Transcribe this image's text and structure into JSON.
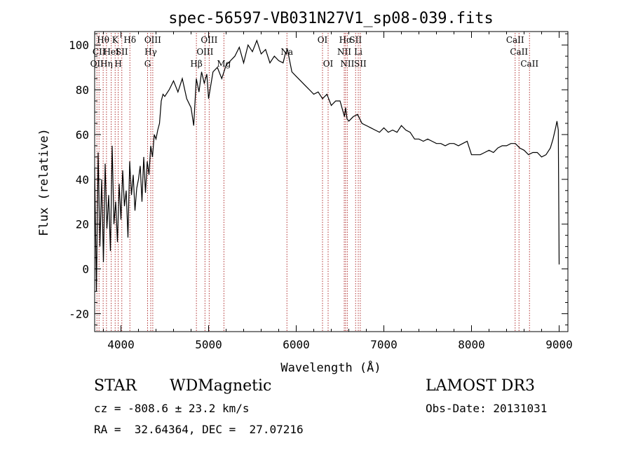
{
  "chart_data": {
    "type": "line",
    "title": "spec-56597-VB031N27V1_sp08-039.fits",
    "xlabel": "Wavelength (Å)",
    "ylabel": "Flux (relative)",
    "xlim": [
      3700,
      9100
    ],
    "ylim": [
      -28,
      106
    ],
    "xticks": [
      4000,
      5000,
      6000,
      7000,
      8000,
      9000
    ],
    "yticks": [
      -20,
      0,
      20,
      40,
      60,
      80,
      100
    ],
    "grid": false,
    "line_color": "#000000",
    "marker_color": "#b03030",
    "series": [
      {
        "x": [
          3700,
          3720,
          3740,
          3760,
          3780,
          3800,
          3820,
          3840,
          3860,
          3880,
          3900,
          3920,
          3940,
          3960,
          3980,
          4000,
          4020,
          4040,
          4060,
          4080,
          4100,
          4120,
          4140,
          4160,
          4180,
          4200,
          4220,
          4240,
          4260,
          4280,
          4300,
          4320,
          4340,
          4360,
          4380,
          4400,
          4420,
          4440,
          4460,
          4480,
          4500,
          4550,
          4600,
          4650,
          4700,
          4750,
          4800,
          4830,
          4860,
          4890,
          4920,
          4950,
          4980,
          5000,
          5050,
          5100,
          5150,
          5200,
          5250,
          5300,
          5350,
          5400,
          5450,
          5500,
          5550,
          5600,
          5650,
          5700,
          5750,
          5800,
          5850,
          5875,
          5900,
          5950,
          6000,
          6050,
          6100,
          6150,
          6200,
          6250,
          6300,
          6350,
          6400,
          6450,
          6500,
          6550,
          6563,
          6580,
          6600,
          6650,
          6700,
          6750,
          6800,
          6850,
          6900,
          6950,
          7000,
          7050,
          7100,
          7150,
          7200,
          7250,
          7300,
          7350,
          7400,
          7450,
          7500,
          7550,
          7600,
          7650,
          7700,
          7750,
          7800,
          7850,
          7900,
          7950,
          8000,
          8050,
          8100,
          8150,
          8200,
          8250,
          8300,
          8350,
          8400,
          8450,
          8500,
          8550,
          8600,
          8650,
          8700,
          8750,
          8800,
          8850,
          8900,
          8930,
          8960,
          8975,
          8990,
          9000
        ],
        "y": [
          45,
          -10,
          52,
          10,
          40,
          3,
          47,
          18,
          33,
          8,
          55,
          20,
          30,
          12,
          38,
          22,
          44,
          28,
          35,
          14,
          48,
          33,
          42,
          26,
          36,
          40,
          46,
          30,
          50,
          34,
          48,
          42,
          55,
          50,
          60,
          58,
          62,
          65,
          75,
          78,
          77,
          80,
          84,
          79,
          85,
          76,
          72,
          64,
          85,
          79,
          88,
          83,
          87,
          76,
          88,
          90,
          85,
          91,
          93,
          95,
          99,
          92,
          100,
          97,
          102,
          96,
          98,
          92,
          95,
          93,
          92,
          96,
          98,
          88,
          86,
          84,
          82,
          80,
          78,
          79,
          76,
          78,
          73,
          75,
          75,
          68,
          72,
          67,
          66,
          68,
          69,
          65,
          64,
          63,
          62,
          61,
          63,
          61,
          62,
          61,
          64,
          62,
          61,
          58,
          58,
          57,
          58,
          57,
          56,
          56,
          55,
          56,
          56,
          55,
          56,
          57,
          51,
          51,
          51,
          52,
          53,
          52,
          54,
          55,
          55,
          56,
          56,
          54,
          53,
          51,
          52,
          52,
          50,
          51,
          54,
          58,
          63,
          66,
          62,
          2
        ]
      }
    ],
    "lines": [
      {
        "w": 3726,
        "name": "OII",
        "tier": 3
      },
      {
        "w": 3750,
        "name": "CII",
        "tier": 2
      },
      {
        "w": 3797,
        "name": "Hθ",
        "tier": 1
      },
      {
        "w": 3835,
        "name": "Hη",
        "tier": 3
      },
      {
        "w": 3889,
        "name": "HeI",
        "tier": 2
      },
      {
        "w": 3934,
        "name": "K",
        "tier": 1
      },
      {
        "w": 3969,
        "name": "H",
        "tier": 3
      },
      {
        "w": 4010,
        "name": "SII",
        "tier": 2
      },
      {
        "w": 4102,
        "name": "Hδ",
        "tier": 1
      },
      {
        "w": 4304,
        "name": "G",
        "tier": 3
      },
      {
        "w": 4340,
        "name": "Hγ",
        "tier": 2
      },
      {
        "w": 4363,
        "name": "OIII",
        "tier": 1
      },
      {
        "w": 4861,
        "name": "Hβ",
        "tier": 3
      },
      {
        "w": 4959,
        "name": "OIII",
        "tier": 2
      },
      {
        "w": 5007,
        "name": "OIII",
        "tier": 1
      },
      {
        "w": 5175,
        "name": "Mg",
        "tier": 3
      },
      {
        "w": 5894,
        "name": "Na",
        "tier": 2
      },
      {
        "w": 6300,
        "name": "OI",
        "tier": 1
      },
      {
        "w": 6364,
        "name": "OI",
        "tier": 3
      },
      {
        "w": 6548,
        "name": "NII",
        "tier": 2
      },
      {
        "w": 6563,
        "name": "Hα",
        "tier": 1
      },
      {
        "w": 6583,
        "name": "NII",
        "tier": 3
      },
      {
        "w": 6678,
        "name": "SII",
        "tier": 1
      },
      {
        "w": 6708,
        "name": "Li",
        "tier": 2
      },
      {
        "w": 6731,
        "name": "SII",
        "tier": 3
      },
      {
        "w": 8498,
        "name": "CaII",
        "tier": 1
      },
      {
        "w": 8542,
        "name": "CaII",
        "tier": 2
      },
      {
        "w": 8662,
        "name": "CaII",
        "tier": 3
      }
    ]
  },
  "info": {
    "object_class": "STAR",
    "subclass": "WDMagnetic",
    "survey": "LAMOST DR3",
    "redshift_line": "cz = -808.6 ± 23.2 km/s",
    "obs_date_line": "Obs-Date: 20131031",
    "coords_line": "RA =  32.64364, DEC =  27.07216"
  }
}
